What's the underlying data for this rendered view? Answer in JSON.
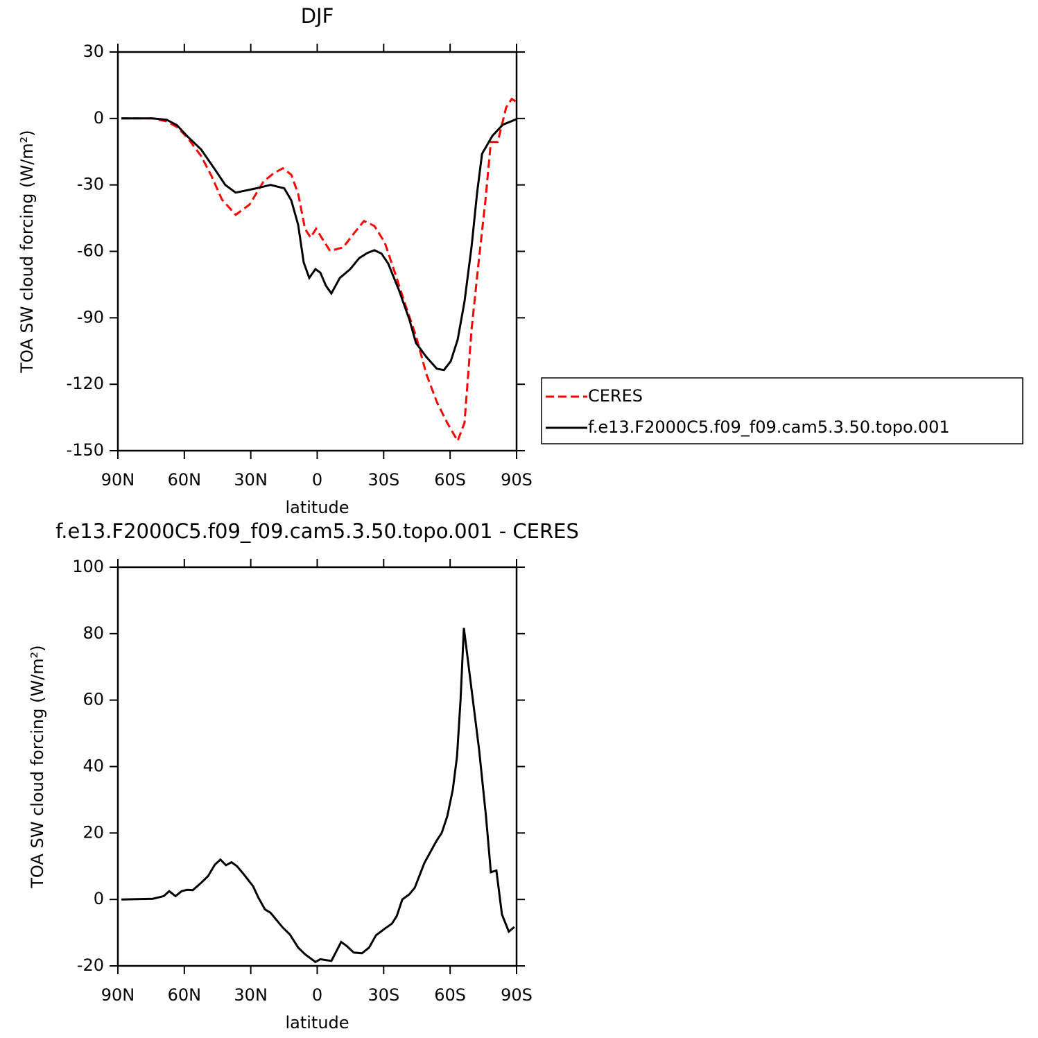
{
  "chart_data": [
    {
      "type": "line",
      "title": "DJF",
      "xlabel": "latitude",
      "ylabel": "TOA SW cloud forcing (W/m²)",
      "xlim": [
        90,
        -90
      ],
      "xticks": [
        {
          "value": 90,
          "label": "90N"
        },
        {
          "value": 60,
          "label": "60N"
        },
        {
          "value": 30,
          "label": "30N"
        },
        0,
        {
          "value": -30,
          "label": "30S"
        },
        {
          "value": -60,
          "label": "60S"
        },
        {
          "value": -90,
          "label": "90S"
        }
      ],
      "ylim": [
        -150,
        30
      ],
      "yticks": [
        30,
        0,
        -30,
        -60,
        -90,
        -120,
        -150
      ],
      "legend": "right",
      "series": [
        {
          "name": "CERES",
          "color": "#ff0000",
          "style": "dashed",
          "x": [
            88.4,
            74.3,
            68,
            63.4,
            58.7,
            52.4,
            47.7,
            43,
            36.8,
            30.5,
            24.3,
            19.6,
            15.5,
            11.7,
            8.6,
            5.5,
            3,
            0.5,
            -2.4,
            -5.8,
            -11.7,
            -16.5,
            -21.1,
            -25.8,
            -30.5,
            -35.2,
            -39.9,
            -44.6,
            -49.3,
            -54,
            -58.7,
            -63.4,
            -66.5,
            -69.7,
            -72.8,
            -75.9,
            -78.4,
            -81.5,
            -85.3,
            -87.8,
            -90
          ],
          "values": [
            0,
            0,
            -1.3,
            -3.8,
            -8.5,
            -17,
            -26,
            -36.6,
            -43.5,
            -38.8,
            -28.5,
            -24.7,
            -22.5,
            -25.4,
            -34,
            -49.8,
            -53.8,
            -49.8,
            -54.5,
            -59.8,
            -58.2,
            -52,
            -46.3,
            -48.5,
            -56,
            -70,
            -84.5,
            -98.3,
            -115.5,
            -128,
            -137.4,
            -145.6,
            -137.4,
            -95,
            -65.4,
            -37.3,
            -10.6,
            -10.6,
            5,
            8.8,
            7.5
          ]
        },
        {
          "name": "f.e13.F2000C5.f09_f09.cam5.3.50.topo.001",
          "color": "#000000",
          "style": "solid",
          "x": [
            88.4,
            74.3,
            68,
            63.4,
            58.7,
            52.4,
            46.2,
            41.5,
            36.8,
            27.4,
            21.1,
            14.9,
            11.7,
            8.6,
            6.1,
            3.6,
            0.8,
            -1.4,
            -3.9,
            -6.4,
            -10.2,
            -14.9,
            -19,
            -22.7,
            -25.8,
            -29,
            -32,
            -36.8,
            -41.5,
            -44.6,
            -49.3,
            -54,
            -57.2,
            -60.3,
            -63.4,
            -66.5,
            -69.7,
            -72.2,
            -74.4,
            -79.1,
            -83.8,
            -90
          ],
          "values": [
            0,
            0,
            -0.6,
            -3,
            -8,
            -14,
            -23,
            -30,
            -33.5,
            -31.5,
            -30,
            -31.5,
            -37,
            -48,
            -65,
            -72,
            -68,
            -69.6,
            -75.5,
            -79,
            -72,
            -68,
            -63,
            -60.7,
            -59.5,
            -61,
            -65.4,
            -77.3,
            -90.5,
            -101.4,
            -107.7,
            -113,
            -113.6,
            -109.6,
            -99.9,
            -82.7,
            -57.6,
            -33.5,
            -16,
            -7.8,
            -2.8,
            -0.3
          ]
        }
      ]
    },
    {
      "type": "line",
      "title": "f.e13.F2000C5.f09_f09.cam5.3.50.topo.001 - CERES",
      "xlabel": "latitude",
      "ylabel": "TOA SW cloud forcing (W/m²)",
      "xlim": [
        90,
        -90
      ],
      "xticks": [
        {
          "value": 90,
          "label": "90N"
        },
        {
          "value": 60,
          "label": "60N"
        },
        {
          "value": 30,
          "label": "30N"
        },
        0,
        {
          "value": -30,
          "label": "30S"
        },
        {
          "value": -60,
          "label": "60S"
        },
        {
          "value": -90,
          "label": "90S"
        }
      ],
      "ylim": [
        -20,
        100
      ],
      "yticks": [
        100,
        80,
        60,
        40,
        20,
        0,
        -20
      ],
      "series": [
        {
          "color": "#000000",
          "style": "solid",
          "x": [
            88.4,
            74.3,
            69.3,
            66.8,
            64,
            61.2,
            58.7,
            56.2,
            52.4,
            49.3,
            46.2,
            43.7,
            41.2,
            38.7,
            36.2,
            33.1,
            29,
            26.5,
            23.6,
            21.1,
            18,
            15.5,
            12.4,
            8.6,
            5.5,
            0.8,
            -1.4,
            -6.4,
            -10.8,
            -13.3,
            -16.5,
            -20.2,
            -23.4,
            -26.5,
            -30.5,
            -33.7,
            -35.9,
            -38.4,
            -41.5,
            -44,
            -48.4,
            -52.5,
            -54,
            -56.2,
            -58.7,
            -61.2,
            -63.1,
            -64.7,
            -66.2,
            -69.7,
            -73.1,
            -76.2,
            -78.4,
            -80.9,
            -83.4,
            -86.5,
            -89
          ],
          "values": [
            0,
            0.2,
            1,
            2.5,
            1,
            2.5,
            2.9,
            2.8,
            5,
            7,
            10.5,
            12,
            10.3,
            11.2,
            10,
            7.5,
            4,
            0.5,
            -3,
            -4,
            -6.5,
            -8.5,
            -10.5,
            -14.5,
            -16.5,
            -18.8,
            -18,
            -18.5,
            -12.8,
            -14,
            -16,
            -16.2,
            -14.5,
            -10.8,
            -8.8,
            -7.3,
            -5,
            0,
            1.5,
            3.5,
            11,
            16,
            17.8,
            20,
            25,
            33,
            43,
            60,
            81.7,
            63,
            45,
            25,
            8.2,
            8.7,
            -4.5,
            -9.7,
            -8.3
          ]
        }
      ]
    }
  ]
}
